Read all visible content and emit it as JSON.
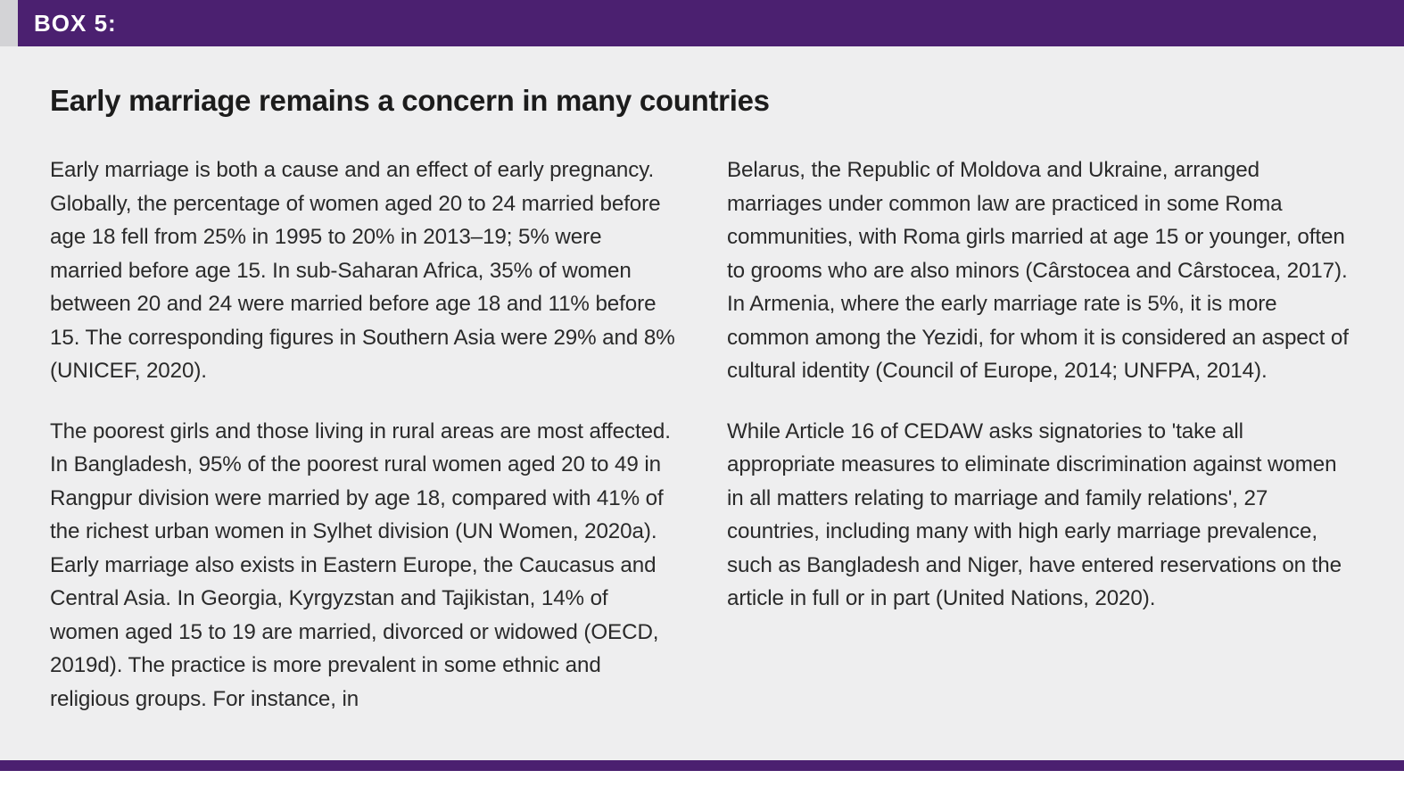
{
  "box": {
    "label": "BOX 5:",
    "title": "Early marriage remains a concern in many countries",
    "accent_color": "#4b2070",
    "accent_left": "#d3d3d6",
    "bg": "#eeeeef",
    "left": {
      "p1": "Early marriage is both a cause and an effect of early pregnancy. Globally, the percentage of women aged 20 to 24 married before age 18 fell from 25% in 1995 to 20% in 2013–19; 5% were married before age 15. In sub-Saharan Africa, 35% of women between 20 and 24 were married before age 18 and 11% before 15. The corresponding figures in Southern Asia were 29% and 8% (UNICEF, 2020).",
      "p2": "The poorest girls and those living in rural areas are most affected. In Bangladesh, 95% of the poorest rural women aged 20 to 49 in Rangpur division were married by age 18, compared with 41% of the richest urban women in Sylhet division (UN Women, 2020a). Early marriage also exists in Eastern Europe, the Caucasus and Central Asia. In Georgia, Kyrgyzstan and Tajikistan, 14% of women aged 15 to 19 are married, divorced or widowed (OECD, 2019d). The practice is more prevalent in some ethnic and religious groups. For instance, in"
    },
    "right": {
      "p1": "Belarus, the Republic of Moldova and Ukraine, arranged marriages under common law are practiced in some Roma communities, with Roma girls married at age 15 or younger, often to grooms who are also minors (Cârstocea and Cârstocea, 2017). In Armenia, where the early marriage rate is 5%, it is more common among the Yezidi, for whom it is considered an aspect of cultural identity (Council of Europe, 2014; UNFPA, 2014).",
      "p2": "While Article 16 of CEDAW asks signatories to 'take all appropriate measures to eliminate discrimination against women in all matters relating to marriage and family relations', 27 countries, including many with high early marriage prevalence, such as Bangladesh and Niger, have entered reservations on the article in full or in part (United Nations, 2020)."
    }
  }
}
